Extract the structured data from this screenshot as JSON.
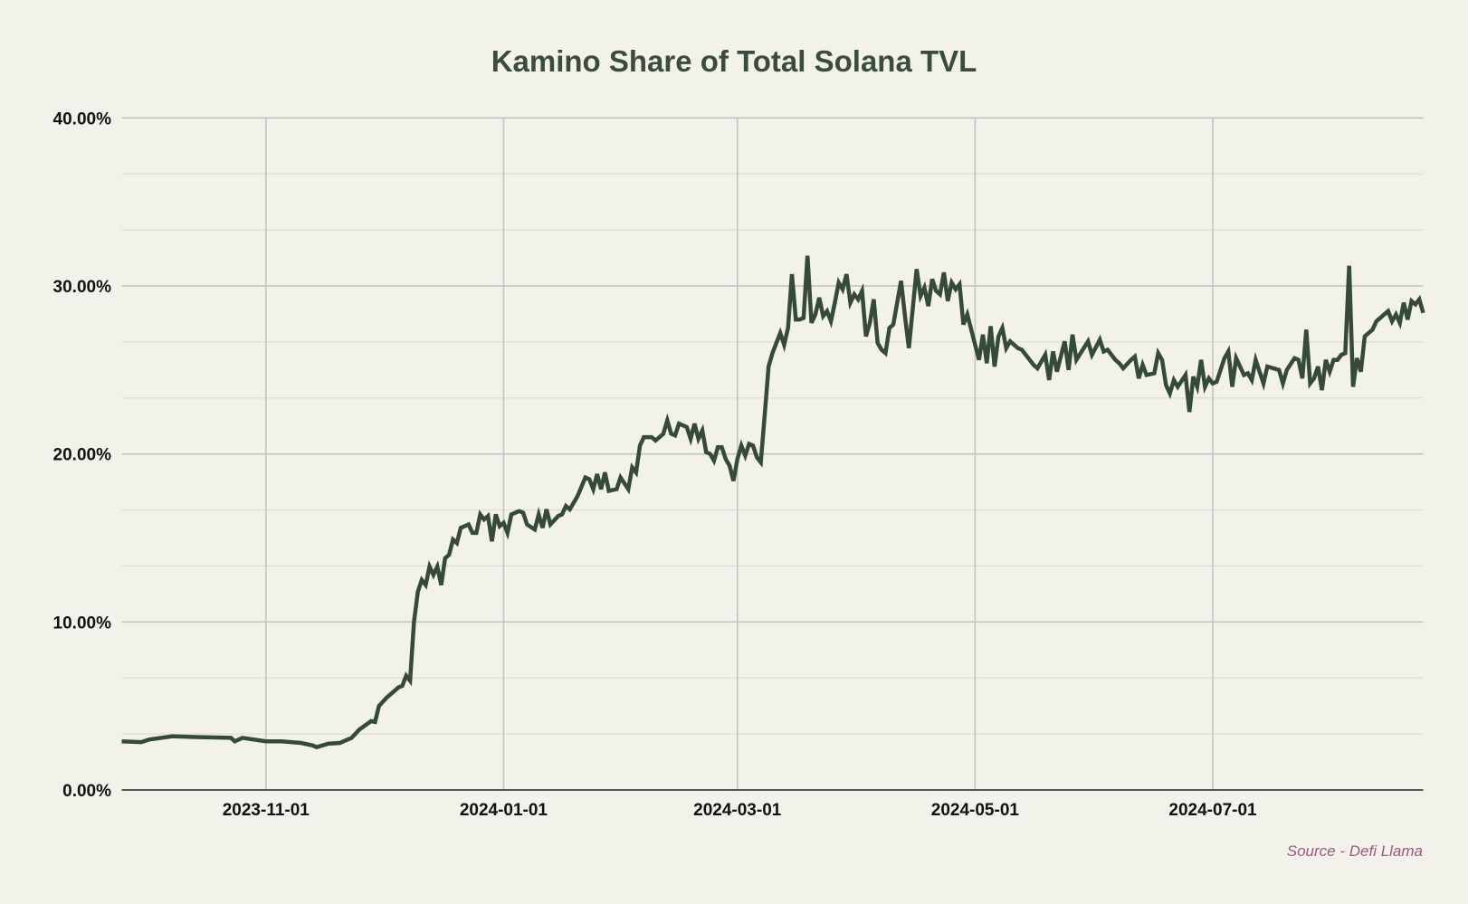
{
  "chart_data": {
    "type": "line",
    "title": "Kamino Share of Total Solana TVL",
    "xlabel": "",
    "ylabel": "",
    "source": "Source - Defi Llama",
    "x_unit": "days since 2023-09-25",
    "x_range": [
      0,
      334
    ],
    "ylim": [
      0,
      40
    ],
    "grid": true,
    "yticks": [
      {
        "value": 0,
        "label": "0.00%"
      },
      {
        "value": 10,
        "label": "10.00%"
      },
      {
        "value": 20,
        "label": "20.00%"
      },
      {
        "value": 30,
        "label": "30.00%"
      },
      {
        "value": 40,
        "label": "40.00%"
      }
    ],
    "xticks": [
      {
        "value": 37,
        "label": "2023-11-01"
      },
      {
        "value": 98,
        "label": "2024-01-01"
      },
      {
        "value": 158,
        "label": "2024-03-01"
      },
      {
        "value": 219,
        "label": "2024-05-01"
      },
      {
        "value": 280,
        "label": "2024-07-01"
      }
    ],
    "line_color": "#364a3a",
    "series": [
      {
        "name": "Kamino share of Solana TVL (%)",
        "points": [
          [
            0,
            2.9
          ],
          [
            5,
            2.85
          ],
          [
            7,
            3.0
          ],
          [
            13,
            3.2
          ],
          [
            19,
            3.15
          ],
          [
            28,
            3.1
          ],
          [
            29,
            2.9
          ],
          [
            31,
            3.1
          ],
          [
            37,
            2.9
          ],
          [
            41,
            2.9
          ],
          [
            46,
            2.8
          ],
          [
            49,
            2.65
          ],
          [
            50,
            2.55
          ],
          [
            53,
            2.75
          ],
          [
            56,
            2.8
          ],
          [
            59,
            3.1
          ],
          [
            61,
            3.6
          ],
          [
            64,
            4.1
          ],
          [
            65,
            4.05
          ],
          [
            66,
            5.0
          ],
          [
            68,
            5.5
          ],
          [
            71,
            6.1
          ],
          [
            72,
            6.2
          ],
          [
            73,
            6.8
          ],
          [
            74,
            6.5
          ],
          [
            75,
            10.0
          ],
          [
            76,
            11.8
          ],
          [
            77,
            12.5
          ],
          [
            78,
            12.2
          ],
          [
            79,
            13.3
          ],
          [
            80,
            12.8
          ],
          [
            81,
            13.3
          ],
          [
            82,
            12.2
          ],
          [
            83,
            13.8
          ],
          [
            84,
            14.0
          ],
          [
            85,
            14.9
          ],
          [
            86,
            14.7
          ],
          [
            87,
            15.6
          ],
          [
            89,
            15.8
          ],
          [
            90,
            15.3
          ],
          [
            91,
            15.3
          ],
          [
            92,
            16.4
          ],
          [
            93,
            16.1
          ],
          [
            94,
            16.3
          ],
          [
            95,
            14.8
          ],
          [
            96,
            16.4
          ],
          [
            97,
            15.7
          ],
          [
            98,
            15.9
          ],
          [
            99,
            15.3
          ],
          [
            100,
            16.4
          ],
          [
            102,
            16.6
          ],
          [
            103,
            16.5
          ],
          [
            104,
            15.8
          ],
          [
            106,
            15.5
          ],
          [
            107,
            16.4
          ],
          [
            108,
            15.6
          ],
          [
            109,
            16.7
          ],
          [
            110,
            15.8
          ],
          [
            112,
            16.3
          ],
          [
            113,
            16.4
          ],
          [
            114,
            16.9
          ],
          [
            115,
            16.7
          ],
          [
            117,
            17.5
          ],
          [
            119,
            18.6
          ],
          [
            120,
            18.5
          ],
          [
            121,
            17.9
          ],
          [
            122,
            18.8
          ],
          [
            123,
            17.9
          ],
          [
            124,
            18.9
          ],
          [
            125,
            17.8
          ],
          [
            127,
            17.9
          ],
          [
            128,
            18.6
          ],
          [
            130,
            17.9
          ],
          [
            131,
            19.2
          ],
          [
            132,
            18.9
          ],
          [
            133,
            20.5
          ],
          [
            134,
            21.0
          ],
          [
            136,
            21.0
          ],
          [
            137,
            20.8
          ],
          [
            139,
            21.2
          ],
          [
            140,
            22.0
          ],
          [
            141,
            21.2
          ],
          [
            142,
            21.1
          ],
          [
            143,
            21.8
          ],
          [
            145,
            21.6
          ],
          [
            146,
            20.9
          ],
          [
            147,
            21.8
          ],
          [
            148,
            20.9
          ],
          [
            149,
            21.4
          ],
          [
            150,
            20.1
          ],
          [
            151,
            20.0
          ],
          [
            152,
            19.6
          ],
          [
            153,
            20.4
          ],
          [
            154,
            20.4
          ],
          [
            155,
            19.7
          ],
          [
            156,
            19.3
          ],
          [
            157,
            18.4
          ],
          [
            158,
            19.7
          ],
          [
            159,
            20.5
          ],
          [
            160,
            19.9
          ],
          [
            161,
            20.6
          ],
          [
            162,
            20.5
          ],
          [
            163,
            19.8
          ],
          [
            164,
            19.5
          ],
          [
            165,
            22.3
          ],
          [
            166,
            25.2
          ],
          [
            167,
            26.0
          ],
          [
            168,
            26.6
          ],
          [
            169,
            27.2
          ],
          [
            170,
            26.5
          ],
          [
            171,
            27.5
          ],
          [
            172,
            30.7
          ],
          [
            173,
            28.0
          ],
          [
            174,
            28.0
          ],
          [
            175,
            28.1
          ],
          [
            176,
            31.8
          ],
          [
            177,
            27.8
          ],
          [
            178,
            28.3
          ],
          [
            179,
            29.3
          ],
          [
            180,
            28.2
          ],
          [
            181,
            28.5
          ],
          [
            182,
            27.9
          ],
          [
            183,
            29.0
          ],
          [
            184,
            30.2
          ],
          [
            185,
            29.8
          ],
          [
            186,
            30.7
          ],
          [
            187,
            29.0
          ],
          [
            188,
            29.5
          ],
          [
            189,
            29.2
          ],
          [
            190,
            29.7
          ],
          [
            191,
            27.0
          ],
          [
            192,
            27.8
          ],
          [
            193,
            29.2
          ],
          [
            194,
            26.6
          ],
          [
            195,
            26.2
          ],
          [
            196,
            26.0
          ],
          [
            197,
            27.5
          ],
          [
            198,
            27.7
          ],
          [
            200,
            30.3
          ],
          [
            201,
            28.2
          ],
          [
            202,
            26.3
          ],
          [
            204,
            31.0
          ],
          [
            205,
            29.4
          ],
          [
            206,
            29.9
          ],
          [
            207,
            28.8
          ],
          [
            208,
            30.4
          ],
          [
            209,
            29.7
          ],
          [
            210,
            29.5
          ],
          [
            211,
            30.8
          ],
          [
            212,
            29.1
          ],
          [
            213,
            30.2
          ],
          [
            214,
            29.8
          ],
          [
            215,
            30.1
          ],
          [
            216,
            27.7
          ],
          [
            217,
            28.3
          ],
          [
            220,
            25.6
          ],
          [
            221,
            27.1
          ],
          [
            222,
            25.4
          ],
          [
            223,
            27.6
          ],
          [
            224,
            25.2
          ],
          [
            225,
            27.0
          ],
          [
            226,
            27.5
          ],
          [
            227,
            26.3
          ],
          [
            228,
            26.7
          ],
          [
            230,
            26.3
          ],
          [
            231,
            26.2
          ],
          [
            234,
            25.3
          ],
          [
            235,
            25.1
          ],
          [
            237,
            25.9
          ],
          [
            238,
            24.4
          ],
          [
            239,
            26.1
          ],
          [
            240,
            24.9
          ],
          [
            242,
            26.7
          ],
          [
            243,
            25.0
          ],
          [
            244,
            27.1
          ],
          [
            245,
            25.6
          ],
          [
            248,
            26.7
          ],
          [
            249,
            25.9
          ],
          [
            251,
            26.8
          ],
          [
            252,
            26.1
          ],
          [
            253,
            26.2
          ],
          [
            255,
            25.6
          ],
          [
            256,
            25.4
          ],
          [
            257,
            25.1
          ],
          [
            259,
            25.6
          ],
          [
            260,
            25.8
          ],
          [
            261,
            24.5
          ],
          [
            262,
            25.3
          ],
          [
            263,
            24.7
          ],
          [
            265,
            24.8
          ],
          [
            266,
            26.0
          ],
          [
            267,
            25.6
          ],
          [
            268,
            24.1
          ],
          [
            269,
            23.6
          ],
          [
            270,
            24.4
          ],
          [
            271,
            24.0
          ],
          [
            273,
            24.7
          ],
          [
            274,
            22.5
          ],
          [
            275,
            24.6
          ],
          [
            276,
            24.0
          ],
          [
            277,
            25.6
          ],
          [
            278,
            24.0
          ],
          [
            279,
            24.5
          ],
          [
            280,
            24.2
          ],
          [
            281,
            24.3
          ],
          [
            283,
            25.7
          ],
          [
            284,
            26.1
          ],
          [
            285,
            24.0
          ],
          [
            286,
            25.7
          ],
          [
            288,
            24.7
          ],
          [
            289,
            24.8
          ],
          [
            290,
            24.4
          ],
          [
            291,
            25.6
          ],
          [
            293,
            24.2
          ],
          [
            294,
            25.2
          ],
          [
            297,
            25.0
          ],
          [
            298,
            24.2
          ],
          [
            299,
            25.0
          ],
          [
            301,
            25.7
          ],
          [
            302,
            25.6
          ],
          [
            303,
            24.5
          ],
          [
            304,
            27.4
          ],
          [
            305,
            24.2
          ],
          [
            306,
            24.5
          ],
          [
            307,
            25.2
          ],
          [
            308,
            23.8
          ],
          [
            309,
            25.6
          ],
          [
            310,
            24.9
          ],
          [
            311,
            25.6
          ],
          [
            312,
            25.6
          ],
          [
            313,
            25.9
          ],
          [
            314,
            26.0
          ],
          [
            315,
            31.2
          ],
          [
            316,
            24.0
          ],
          [
            317,
            25.7
          ],
          [
            318,
            24.9
          ],
          [
            319,
            27.0
          ],
          [
            321,
            27.4
          ],
          [
            322,
            27.9
          ],
          [
            324,
            28.3
          ],
          [
            325,
            28.5
          ],
          [
            326,
            27.9
          ],
          [
            327,
            28.3
          ],
          [
            328,
            27.8
          ],
          [
            329,
            29.0
          ],
          [
            330,
            28.0
          ],
          [
            331,
            29.1
          ],
          [
            332,
            28.9
          ],
          [
            333,
            29.2
          ],
          [
            334,
            28.4
          ]
        ]
      }
    ]
  }
}
